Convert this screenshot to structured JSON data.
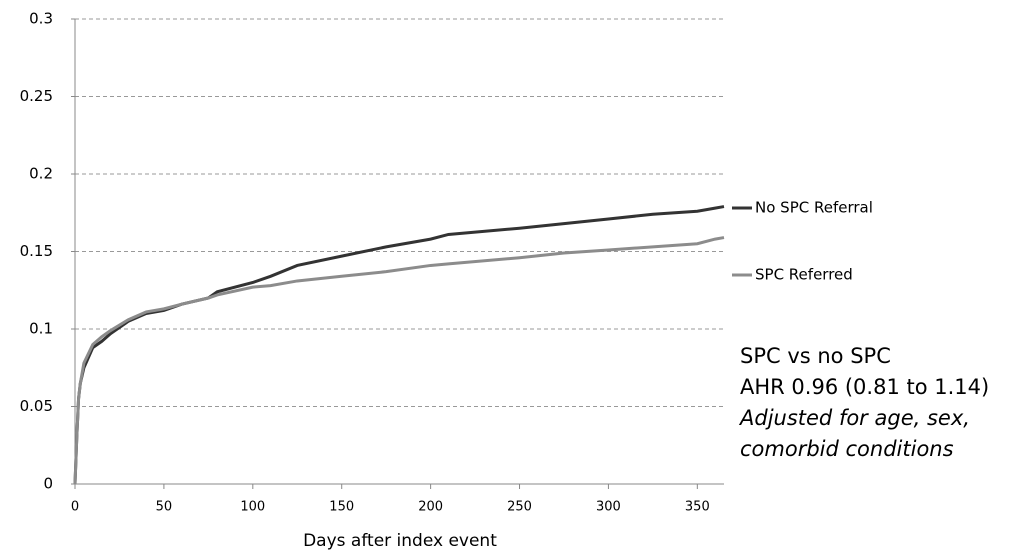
{
  "chart_data": {
    "type": "line",
    "x_label": "Days after index event",
    "x": [
      0,
      1,
      2,
      3,
      5,
      10,
      15,
      20,
      30,
      40,
      50,
      60,
      75,
      80,
      100,
      110,
      125,
      150,
      175,
      200,
      210,
      250,
      275,
      300,
      325,
      350,
      360,
      365
    ],
    "series": [
      {
        "name": "No SPC Referral",
        "color": "#333333",
        "values": [
          0,
          0.03,
          0.055,
          0.065,
          0.075,
          0.088,
          0.092,
          0.097,
          0.105,
          0.11,
          0.112,
          0.116,
          0.12,
          0.124,
          0.13,
          0.134,
          0.141,
          0.147,
          0.153,
          0.158,
          0.161,
          0.165,
          0.168,
          0.171,
          0.174,
          0.176,
          0.178,
          0.179
        ]
      },
      {
        "name": "SPC Referred",
        "color": "#8c8c8c",
        "values": [
          0,
          0.03,
          0.055,
          0.065,
          0.078,
          0.09,
          0.095,
          0.099,
          0.106,
          0.111,
          0.113,
          0.116,
          0.12,
          0.122,
          0.127,
          0.128,
          0.131,
          0.134,
          0.137,
          0.141,
          0.142,
          0.146,
          0.149,
          0.151,
          0.153,
          0.155,
          0.158,
          0.159
        ]
      }
    ],
    "xlim": [
      0,
      365
    ],
    "xticks": [
      0,
      50,
      100,
      150,
      200,
      250,
      300,
      350
    ],
    "ylim": [
      0,
      0.3
    ],
    "yticks": [
      0,
      0.05,
      0.1,
      0.15,
      0.2,
      0.25,
      0.3
    ],
    "grid": true,
    "legend": "right",
    "annotations": [
      "SPC vs no SPC",
      "AHR 0.96 (0.81 to 1.14)",
      "Adjusted for age, sex,",
      "comorbid conditions"
    ]
  }
}
